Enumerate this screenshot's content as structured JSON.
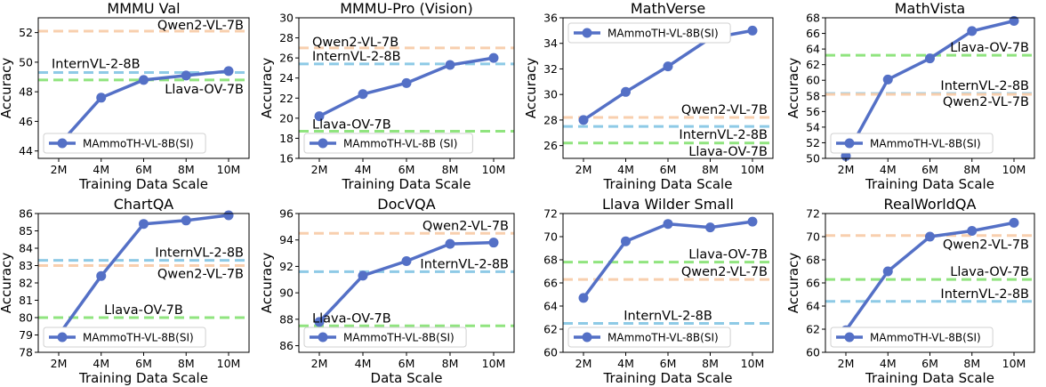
{
  "figure": {
    "colors": {
      "series": "#5470c6",
      "ref": [
        "#f8cfae",
        "#8ecae6",
        "#90e47f"
      ]
    }
  },
  "chart_data": [
    {
      "type": "line",
      "title": "MMMU Val",
      "xlabel": "Training Data Scale",
      "ylabel": "Accuracy",
      "categories": [
        "2M",
        "4M",
        "6M",
        "8M",
        "10M"
      ],
      "ylim": [
        43.5,
        53
      ],
      "yticks": [
        44,
        46,
        48,
        50,
        52
      ],
      "series": [
        {
          "name": "MAmmoTH-VL-8B(SI)",
          "values": [
            44.4,
            47.6,
            48.8,
            49.1,
            49.4
          ]
        }
      ],
      "legend": "bottom-left",
      "refs": [
        {
          "name": "Qwen2-VL-7B",
          "value": 52.1,
          "color": "#f8cfae",
          "label_pos": "right",
          "label_dy": -2
        },
        {
          "name": "InternVL-2-8B",
          "value": 49.3,
          "color": "#8ecae6",
          "label_pos": "left",
          "label_dy": -5
        },
        {
          "name": "Llava-OV-7B",
          "value": 48.8,
          "color": "#90e47f",
          "label_pos": "right",
          "label_dy": 15
        }
      ]
    },
    {
      "type": "line",
      "title": "MMMU-Pro (Vision)",
      "xlabel": "Training Data Scale",
      "ylabel": "Accuracy",
      "categories": [
        "2M",
        "4M",
        "6M",
        "8M",
        "10M"
      ],
      "ylim": [
        16,
        30
      ],
      "yticks": [
        16,
        18,
        20,
        22,
        24,
        26,
        28,
        30
      ],
      "series": [
        {
          "name": "MAmmoTH-VL-8B (SI)",
          "values": [
            20.2,
            22.4,
            23.5,
            25.3,
            26.0
          ]
        }
      ],
      "legend": "bottom-left",
      "refs": [
        {
          "name": "Qwen2-VL-7B",
          "value": 27.0,
          "color": "#f8cfae",
          "label_pos": "left",
          "label_dy": -2
        },
        {
          "name": "InternVL-2-8B",
          "value": 25.4,
          "color": "#8ecae6",
          "label_pos": "left",
          "label_dy": -4
        },
        {
          "name": "Llava-OV-7B",
          "value": 18.7,
          "color": "#90e47f",
          "label_pos": "left",
          "label_dy": -3
        }
      ]
    },
    {
      "type": "line",
      "title": "MathVerse",
      "xlabel": "Training Data Scale",
      "ylabel": "Accuracy",
      "categories": [
        "2M",
        "4M",
        "6M",
        "8M",
        "10M"
      ],
      "ylim": [
        25,
        36
      ],
      "yticks": [
        26,
        28,
        30,
        32,
        34,
        36
      ],
      "series": [
        {
          "name": "MAmmoTH-VL-8B(SI)",
          "values": [
            28.0,
            30.2,
            32.2,
            34.4,
            35.0
          ]
        }
      ],
      "legend": "top-left",
      "refs": [
        {
          "name": "Qwen2-VL-7B",
          "value": 28.2,
          "color": "#f8cfae",
          "label_pos": "right",
          "label_dy": -4
        },
        {
          "name": "InternVL-2-8B",
          "value": 27.5,
          "color": "#8ecae6",
          "label_pos": "right",
          "label_dy": 14
        },
        {
          "name": "Llava-OV-7B",
          "value": 26.2,
          "color": "#90e47f",
          "label_pos": "right",
          "label_dy": 14
        }
      ]
    },
    {
      "type": "line",
      "title": "MathVista",
      "xlabel": "Training Data Scale",
      "ylabel": "Accuracy",
      "categories": [
        "2M",
        "4M",
        "6M",
        "8M",
        "10M"
      ],
      "ylim": [
        50,
        68
      ],
      "yticks": [
        50,
        52,
        54,
        56,
        58,
        60,
        62,
        64,
        66,
        68
      ],
      "series": [
        {
          "name": "MAmmoTH-VL-8B(SI)",
          "values": [
            50.3,
            60.1,
            62.8,
            66.3,
            67.6
          ]
        }
      ],
      "legend": "bottom-left",
      "refs": [
        {
          "name": "Llava-OV-7B",
          "value": 63.2,
          "color": "#90e47f",
          "label_pos": "right",
          "label_dy": -4
        },
        {
          "name": "InternVL-2-8B",
          "value": 58.3,
          "color": "#8ecae6",
          "label_pos": "right",
          "label_dy": -4
        },
        {
          "name": "Qwen2-VL-7B",
          "value": 58.2,
          "color": "#f8cfae",
          "label_pos": "right",
          "label_dy": 13
        }
      ]
    },
    {
      "type": "line",
      "title": "ChartQA",
      "xlabel": "Training Data Scale",
      "ylabel": "Accuracy",
      "categories": [
        "2M",
        "4M",
        "6M",
        "8M",
        "10M"
      ],
      "ylim": [
        78,
        86
      ],
      "yticks": [
        78,
        79,
        80,
        81,
        82,
        83,
        84,
        85,
        86
      ],
      "series": [
        {
          "name": "MAmmoTH-VL-8B(SI)",
          "values": [
            79.0,
            82.4,
            85.4,
            85.6,
            85.9
          ]
        }
      ],
      "legend": "bottom-left",
      "refs": [
        {
          "name": "InternVL-2-8B",
          "value": 83.3,
          "color": "#8ecae6",
          "label_pos": "right",
          "label_dy": -4
        },
        {
          "name": "Qwen2-VL-7B",
          "value": 83.0,
          "color": "#f8cfae",
          "label_pos": "right",
          "label_dy": 14
        },
        {
          "name": "Llava-OV-7B",
          "value": 80.0,
          "color": "#90e47f",
          "label_pos": "center",
          "label_dy": -4
        }
      ]
    },
    {
      "type": "line",
      "title": "DocVQA",
      "xlabel": "Data Scale",
      "ylabel": "Accuracy",
      "categories": [
        "2M",
        "4M",
        "6M",
        "8M",
        "10M"
      ],
      "ylim": [
        85.5,
        96
      ],
      "yticks": [
        86,
        88,
        90,
        92,
        94,
        96
      ],
      "series": [
        {
          "name": "MAmmoTH-VL-8B(SI)",
          "values": [
            87.8,
            91.3,
            92.4,
            93.7,
            93.8
          ]
        }
      ],
      "legend": "bottom-left",
      "refs": [
        {
          "name": "Qwen2-VL-7B",
          "value": 94.5,
          "color": "#f8cfae",
          "label_pos": "right",
          "label_dy": -4
        },
        {
          "name": "InternVL-2-8B",
          "value": 91.6,
          "color": "#8ecae6",
          "label_pos": "right",
          "label_dy": -4
        },
        {
          "name": "Llava-OV-7B",
          "value": 87.5,
          "color": "#90e47f",
          "label_pos": "left",
          "label_dy": -4
        }
      ]
    },
    {
      "type": "line",
      "title": "Llava Wilder Small",
      "xlabel": "Training Data Scale",
      "ylabel": "",
      "categories": [
        "2M",
        "4M",
        "6M",
        "8M",
        "10M"
      ],
      "ylim": [
        60,
        72
      ],
      "yticks": [
        60,
        62,
        64,
        66,
        68,
        70,
        72
      ],
      "series": [
        {
          "name": "MAmmoTH-VL-8B(SI)",
          "values": [
            64.7,
            69.6,
            71.1,
            70.8,
            71.3
          ]
        }
      ],
      "legend": "bottom-left",
      "refs": [
        {
          "name": "Llava-OV-7B",
          "value": 67.8,
          "color": "#90e47f",
          "label_pos": "right",
          "label_dy": -4
        },
        {
          "name": "Qwen2-VL-7B",
          "value": 66.3,
          "color": "#f8cfae",
          "label_pos": "right",
          "label_dy": -4
        },
        {
          "name": "InternVL-2-8B",
          "value": 62.5,
          "color": "#8ecae6",
          "label_pos": "center",
          "label_dy": -4
        }
      ]
    },
    {
      "type": "line",
      "title": "RealWorldQA",
      "xlabel": "Training Data Scale",
      "ylabel": "Accuracy",
      "categories": [
        "2M",
        "4M",
        "6M",
        "8M",
        "10M"
      ],
      "ylim": [
        60,
        72
      ],
      "yticks": [
        60,
        62,
        64,
        66,
        68,
        70,
        72
      ],
      "series": [
        {
          "name": "MAmmoTH-VL-8B(SI)",
          "values": [
            61.9,
            67.0,
            70.0,
            70.5,
            71.2
          ]
        }
      ],
      "legend": "bottom-left",
      "refs": [
        {
          "name": "Qwen2-VL-7B",
          "value": 70.1,
          "color": "#f8cfae",
          "label_pos": "right",
          "label_dy": 15
        },
        {
          "name": "Llava-OV-7B",
          "value": 66.3,
          "color": "#90e47f",
          "label_pos": "right",
          "label_dy": -4
        },
        {
          "name": "InternVL-2-8B",
          "value": 64.4,
          "color": "#8ecae6",
          "label_pos": "right",
          "label_dy": -4
        }
      ]
    }
  ]
}
